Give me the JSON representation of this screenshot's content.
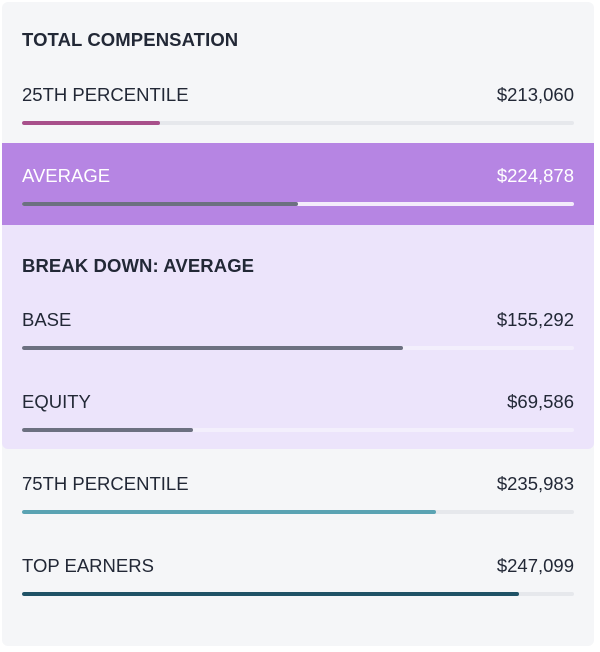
{
  "title": "TOTAL COMPENSATION",
  "rows": {
    "p25": {
      "label": "25TH PERCENTILE",
      "value": "$213,060",
      "fill_fraction": 0.25,
      "color": "#a8508b"
    },
    "average": {
      "label": "AVERAGE",
      "value": "$224,878",
      "fill_fraction": 0.5,
      "color": "#6c7080"
    },
    "p75": {
      "label": "75TH PERCENTILE",
      "value": "$235,983",
      "fill_fraction": 0.75,
      "color": "#5aa3b3"
    },
    "top": {
      "label": "TOP EARNERS",
      "value": "$247,099",
      "fill_fraction": 0.9,
      "color": "#1f5266"
    }
  },
  "breakdown": {
    "title": "BREAK DOWN: AVERAGE",
    "base": {
      "label": "BASE",
      "value": "$155,292",
      "fill_fraction": 0.69,
      "color": "#6c7080"
    },
    "equity": {
      "label": "EQUITY",
      "value": "$69,586",
      "fill_fraction": 0.31,
      "color": "#6c7080"
    }
  },
  "colors": {
    "average_band": "#b685e3",
    "breakdown_band": "#ece4fb",
    "track": "#e6e8ec"
  }
}
